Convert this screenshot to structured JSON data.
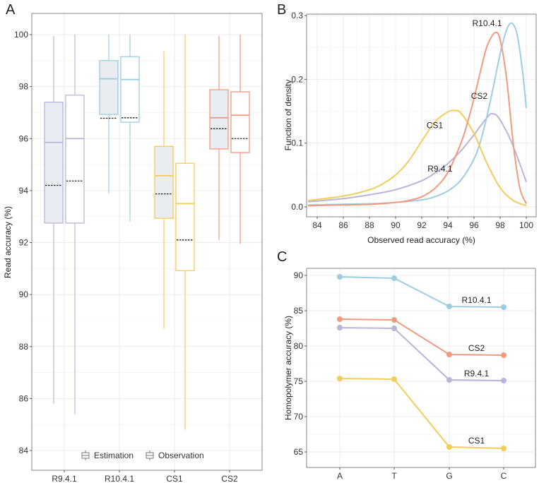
{
  "chart_data": [
    {
      "panel": "A",
      "type": "box",
      "ylabel": "Read accuracy (%)",
      "xlabel": "",
      "ylim": [
        83.3,
        100.8
      ],
      "yticks": [
        84,
        86,
        88,
        90,
        92,
        94,
        96,
        98,
        100
      ],
      "categories": [
        "R9.4.1",
        "R10.4.1",
        "CS1",
        "CS2"
      ],
      "legend": {
        "placement": "bottom-inside",
        "entries": [
          "Estimation",
          "Observation"
        ]
      },
      "colors": {
        "R9.4.1": "#b9b5d8",
        "R10.4.1": "#9fcde0",
        "CS1": "#f3cd5a",
        "CS2": "#f29a80"
      },
      "groups": [
        {
          "category": "R9.4.1",
          "estimation": {
            "whisker_low": 85.8,
            "q1": 92.75,
            "median": 95.85,
            "q3": 97.4,
            "whisker_high": 99.95,
            "mean": 94.2
          },
          "observation": {
            "whisker_low": 85.4,
            "q1": 92.75,
            "median": 96.0,
            "q3": 97.67,
            "whisker_high": 100.0,
            "mean": 94.37
          }
        },
        {
          "category": "R10.4.1",
          "estimation": {
            "whisker_low": 93.9,
            "q1": 96.93,
            "median": 98.3,
            "q3": 99.0,
            "whisker_high": 100.0,
            "mean": 96.78
          },
          "observation": {
            "whisker_low": 92.8,
            "q1": 96.63,
            "median": 98.27,
            "q3": 99.15,
            "whisker_high": 100.0,
            "mean": 96.8
          }
        },
        {
          "category": "CS1",
          "estimation": {
            "whisker_low": 88.7,
            "q1": 92.93,
            "median": 94.57,
            "q3": 95.7,
            "whisker_high": 99.35,
            "mean": 93.87
          },
          "observation": {
            "whisker_low": 84.8,
            "q1": 90.92,
            "median": 93.5,
            "q3": 95.05,
            "whisker_high": 100.0,
            "mean": 92.1
          }
        },
        {
          "category": "CS2",
          "estimation": {
            "whisker_low": 92.1,
            "q1": 95.6,
            "median": 96.8,
            "q3": 97.88,
            "whisker_high": 99.95,
            "mean": 96.38
          },
          "observation": {
            "whisker_low": 91.95,
            "q1": 95.46,
            "median": 96.9,
            "q3": 97.8,
            "whisker_high": 100.0,
            "mean": 96.0
          }
        }
      ]
    },
    {
      "panel": "B",
      "type": "line",
      "title": "",
      "xlabel": "Observed read accuracy (%)",
      "ylabel": "Function of density",
      "xlim": [
        83.3,
        100.6
      ],
      "ylim": [
        -0.013,
        0.302
      ],
      "xticks": [
        84,
        86,
        88,
        90,
        92,
        94,
        96,
        98,
        100
      ],
      "yticks": [
        0.0,
        0.1,
        0.2,
        0.3
      ],
      "ytick_labels": [
        "0.0",
        "0.1",
        "0.2",
        "0.3"
      ],
      "series": [
        {
          "name": "R9.4.1",
          "color": "#b9b5d8",
          "peak_x": 97.3,
          "peak_y": 0.146,
          "x": [
            83.3,
            86,
            88,
            90,
            92,
            93,
            94,
            95,
            96,
            96.5,
            97,
            97.3,
            97.8,
            98.5,
            99,
            99.5,
            100
          ],
          "y": [
            0.008,
            0.013,
            0.019,
            0.027,
            0.041,
            0.053,
            0.068,
            0.088,
            0.113,
            0.127,
            0.14,
            0.146,
            0.142,
            0.118,
            0.095,
            0.068,
            0.039
          ]
        },
        {
          "name": "R10.4.1",
          "color": "#9fcde0",
          "peak_x": 98.9,
          "peak_y": 0.288,
          "x": [
            83.3,
            88,
            90,
            92,
            93,
            94,
            95,
            96,
            96.5,
            97,
            97.5,
            98,
            98.5,
            98.9,
            99.3,
            99.7,
            100
          ],
          "y": [
            0.003,
            0.005,
            0.007,
            0.011,
            0.016,
            0.025,
            0.042,
            0.075,
            0.103,
            0.143,
            0.19,
            0.24,
            0.278,
            0.288,
            0.27,
            0.215,
            0.155
          ]
        },
        {
          "name": "CS1",
          "color": "#f3cd5a",
          "peak_x": 94.5,
          "peak_y": 0.151,
          "x": [
            83.3,
            86,
            88,
            89,
            90,
            91,
            92,
            93,
            94,
            94.5,
            95,
            96,
            97,
            98,
            99,
            100
          ],
          "y": [
            0.01,
            0.017,
            0.027,
            0.036,
            0.05,
            0.072,
            0.103,
            0.133,
            0.149,
            0.151,
            0.147,
            0.115,
            0.068,
            0.03,
            0.01,
            0.002
          ]
        },
        {
          "name": "CS2",
          "color": "#f29a80",
          "peak_x": 97.6,
          "peak_y": 0.273,
          "x": [
            83.3,
            88,
            90,
            91,
            92,
            93,
            94,
            95,
            95.5,
            96,
            96.5,
            97,
            97.6,
            98,
            98.5,
            99,
            99.5,
            100
          ],
          "y": [
            0.002,
            0.004,
            0.007,
            0.01,
            0.016,
            0.029,
            0.054,
            0.1,
            0.132,
            0.17,
            0.213,
            0.252,
            0.273,
            0.262,
            0.2,
            0.1,
            0.03,
            0.005
          ]
        }
      ],
      "annotations": [
        {
          "text": "R10.4.1",
          "x": 97.0,
          "y": 0.288
        },
        {
          "text": "CS2",
          "x": 96.4,
          "y": 0.174
        },
        {
          "text": "CS1",
          "x": 93.0,
          "y": 0.128
        },
        {
          "text": "R9.4.1",
          "x": 93.4,
          "y": 0.06
        }
      ]
    },
    {
      "panel": "C",
      "type": "line",
      "xlabel": "",
      "ylabel": "Homopolymer accuracy (%)",
      "categories": [
        "A",
        "T",
        "G",
        "C"
      ],
      "ylim": [
        64.3,
        90.9
      ],
      "yticks": [
        65,
        70,
        75,
        80,
        85,
        90
      ],
      "series": [
        {
          "name": "R10.4.1",
          "color": "#9fcde0",
          "values": [
            89.8,
            89.6,
            85.6,
            85.5
          ]
        },
        {
          "name": "CS2",
          "color": "#f29a80",
          "values": [
            83.8,
            83.7,
            78.8,
            78.7
          ]
        },
        {
          "name": "R9.4.1",
          "color": "#b9b5d8",
          "values": [
            82.6,
            82.5,
            75.2,
            75.1
          ]
        },
        {
          "name": "CS1",
          "color": "#f3cd5a",
          "values": [
            75.4,
            75.3,
            65.7,
            65.5
          ]
        }
      ],
      "annotations": [
        {
          "text": "R10.4.1",
          "label_value": 86.1
        },
        {
          "text": "CS2",
          "label_value": 79.3
        },
        {
          "text": "R9.4.1",
          "label_value": 75.7
        },
        {
          "text": "CS1",
          "label_value": 66.2
        }
      ]
    }
  ],
  "labels": {
    "panelA": "A",
    "panelB": "B",
    "panelC": "C"
  },
  "style": {
    "box_fill_estimation": "#e9ecf1",
    "mean_line_color": "#222222"
  }
}
